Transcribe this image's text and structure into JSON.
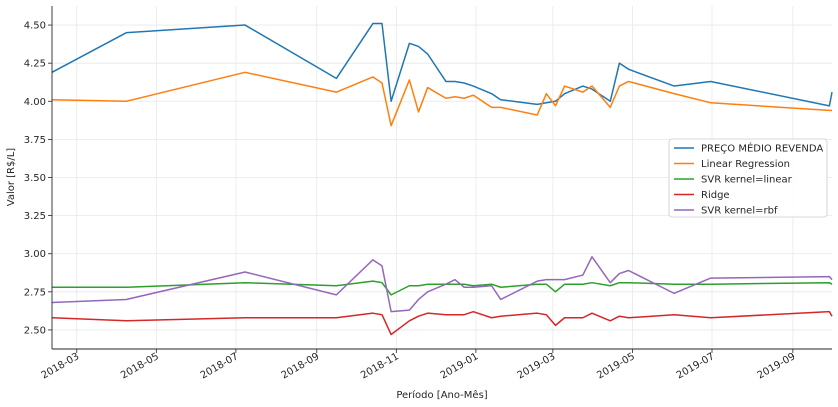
{
  "chart_data": {
    "type": "line",
    "title": "",
    "xlabel": "Período [Ano-Mês]",
    "ylabel": "Valor [R$/L]",
    "xlim": [
      "2018-02-10",
      "2019-10-01"
    ],
    "ylim": [
      2.375,
      4.625
    ],
    "grid": true,
    "legend_position": "center-right",
    "x_ticks": [
      "2018-03",
      "2018-05",
      "2018-07",
      "2018-09",
      "2018-11",
      "2019-01",
      "2019-03",
      "2019-05",
      "2019-07",
      "2019-09"
    ],
    "x_tick_dates": [
      "2018-03-01",
      "2018-05-01",
      "2018-07-01",
      "2018-09-01",
      "2018-11-01",
      "2019-01-01",
      "2019-03-01",
      "2019-05-01",
      "2019-07-01",
      "2019-09-01"
    ],
    "y_ticks": [
      "2.50",
      "2.75",
      "3.00",
      "3.25",
      "3.50",
      "3.75",
      "4.00",
      "4.25",
      "4.50"
    ],
    "y_tick_values": [
      2.5,
      2.75,
      3.0,
      3.25,
      3.5,
      3.75,
      4.0,
      4.25,
      4.5
    ],
    "x": [
      "2018-02-10",
      "2018-04-08",
      "2018-07-08",
      "2018-09-16",
      "2018-10-14",
      "2018-10-21",
      "2018-10-28",
      "2018-11-11",
      "2018-11-18",
      "2018-11-25",
      "2018-12-09",
      "2018-12-16",
      "2018-12-23",
      "2018-12-30",
      "2019-01-13",
      "2019-01-20",
      "2019-02-17",
      "2019-02-24",
      "2019-03-03",
      "2019-03-10",
      "2019-03-24",
      "2019-03-31",
      "2019-04-14",
      "2019-04-21",
      "2019-04-28",
      "2019-06-02",
      "2019-06-30",
      "2019-09-29",
      "2019-10-01"
    ],
    "series": [
      {
        "name": "PREÇO MÉDIO REVENDA",
        "color": "#1f77b4",
        "values": [
          4.19,
          4.45,
          4.5,
          4.15,
          4.51,
          4.51,
          4.0,
          4.38,
          4.36,
          4.31,
          4.13,
          4.13,
          4.12,
          4.1,
          4.05,
          4.01,
          3.98,
          3.99,
          4.0,
          4.05,
          4.1,
          4.08,
          4.0,
          4.25,
          4.21,
          4.1,
          4.13,
          3.97,
          4.06
        ]
      },
      {
        "name": "Linear Regression",
        "color": "#ff7f0e",
        "values": [
          4.01,
          4.0,
          4.19,
          4.06,
          4.16,
          4.12,
          3.84,
          4.14,
          3.93,
          4.09,
          4.02,
          4.03,
          4.02,
          4.04,
          3.96,
          3.96,
          3.91,
          4.05,
          3.97,
          4.1,
          4.06,
          4.1,
          3.96,
          4.1,
          4.13,
          4.05,
          3.99,
          3.94,
          3.94
        ]
      },
      {
        "name": "SVR kernel=linear",
        "color": "#2ca02c",
        "values": [
          2.78,
          2.78,
          2.81,
          2.79,
          2.82,
          2.81,
          2.73,
          2.79,
          2.79,
          2.8,
          2.8,
          2.8,
          2.8,
          2.79,
          2.8,
          2.78,
          2.8,
          2.8,
          2.75,
          2.8,
          2.8,
          2.81,
          2.79,
          2.81,
          2.81,
          2.8,
          2.8,
          2.81,
          2.8
        ]
      },
      {
        "name": "Ridge",
        "color": "#d62728",
        "values": [
          2.58,
          2.56,
          2.58,
          2.58,
          2.61,
          2.6,
          2.47,
          2.56,
          2.59,
          2.61,
          2.6,
          2.6,
          2.6,
          2.62,
          2.58,
          2.59,
          2.61,
          2.6,
          2.53,
          2.58,
          2.58,
          2.61,
          2.56,
          2.59,
          2.58,
          2.6,
          2.58,
          2.62,
          2.59
        ]
      },
      {
        "name": "SVR kernel=rbf",
        "color": "#9467bd",
        "values": [
          2.68,
          2.7,
          2.88,
          2.73,
          2.96,
          2.92,
          2.62,
          2.63,
          2.7,
          2.75,
          2.8,
          2.83,
          2.78,
          2.78,
          2.79,
          2.7,
          2.82,
          2.83,
          2.83,
          2.83,
          2.86,
          2.98,
          2.81,
          2.87,
          2.89,
          2.74,
          2.84,
          2.85,
          2.83
        ]
      }
    ]
  }
}
